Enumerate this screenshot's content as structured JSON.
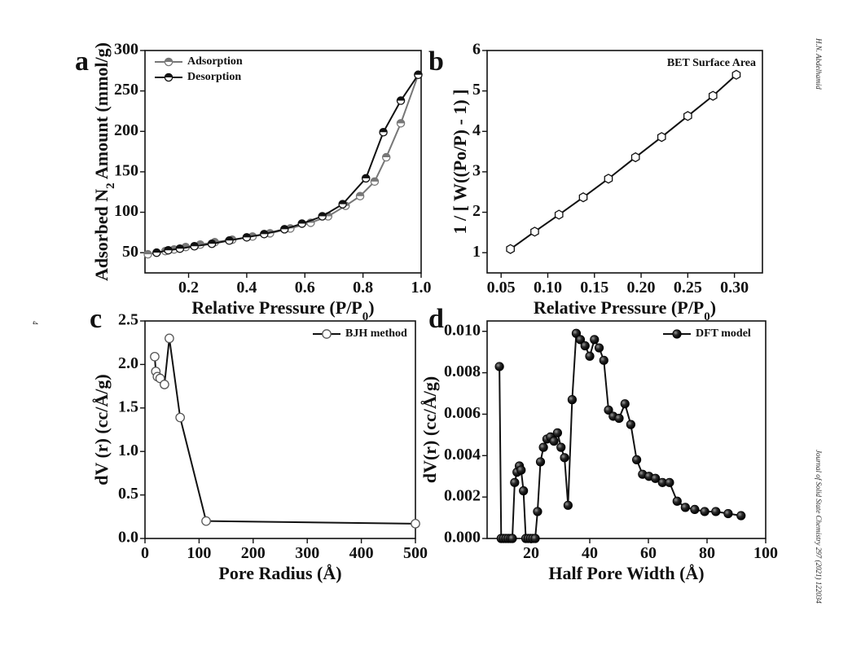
{
  "side_text": {
    "author": "H.N. Abdelhamid",
    "journal": "Journal of Solid State Chemistry 297 (2021) 122034",
    "page": "4"
  },
  "chart_data": [
    {
      "panel": "a",
      "type": "line",
      "xlabel": "Relative Pressure (P/P0)",
      "ylabel": "Adsorbed N2 Amount (mmol/g)",
      "xlim": [
        0.05,
        1.0
      ],
      "ylim": [
        25,
        300
      ],
      "xticks": [
        "0.2",
        "0.4",
        "0.6",
        "0.8",
        "1.0"
      ],
      "xtick_values": [
        0.2,
        0.4,
        0.6,
        0.8,
        1.0
      ],
      "yticks": [
        "50",
        "100",
        "150",
        "200",
        "250",
        "300"
      ],
      "ytick_values": [
        50,
        100,
        150,
        200,
        250,
        300
      ],
      "legend_position": "top-left",
      "series": [
        {
          "name": "Adsorption",
          "color": "#777777",
          "marker": "circle-half",
          "x": [
            0.06,
            0.09,
            0.12,
            0.15,
            0.19,
            0.24,
            0.29,
            0.35,
            0.42,
            0.48,
            0.55,
            0.62,
            0.68,
            0.74,
            0.79,
            0.84,
            0.88,
            0.93,
            0.99
          ],
          "y": [
            48,
            50,
            52,
            54,
            57,
            60,
            63,
            66,
            70,
            74,
            80,
            87,
            95,
            108,
            120,
            138,
            168,
            210,
            270
          ]
        },
        {
          "name": "Desorption",
          "color": "#111111",
          "marker": "circle-half",
          "x": [
            0.99,
            0.93,
            0.87,
            0.81,
            0.73,
            0.66,
            0.59,
            0.53,
            0.46,
            0.4,
            0.34,
            0.28,
            0.22,
            0.17,
            0.13,
            0.09
          ],
          "y": [
            270,
            238,
            199,
            142,
            110,
            95,
            86,
            79,
            73,
            69,
            65,
            61,
            58,
            55,
            53,
            50
          ]
        }
      ]
    },
    {
      "panel": "b",
      "type": "scatter",
      "annotation": "BET Surface Area",
      "xlabel": "Relative Pressure (P/P0)",
      "ylabel": "1 / [ W((Po/P) - 1) ]",
      "xlim": [
        0.035,
        0.33
      ],
      "ylim": [
        0.5,
        6
      ],
      "xticks": [
        "0.05",
        "0.10",
        "0.15",
        "0.20",
        "0.25",
        "0.30"
      ],
      "xtick_values": [
        0.05,
        0.1,
        0.15,
        0.2,
        0.25,
        0.3
      ],
      "yticks": [
        "1",
        "2",
        "3",
        "4",
        "5",
        "6"
      ],
      "ytick_values": [
        1,
        2,
        3,
        4,
        5,
        6
      ],
      "series": [
        {
          "name": "",
          "color": "#111111",
          "marker": "hexagon",
          "x": [
            0.06,
            0.086,
            0.112,
            0.138,
            0.165,
            0.194,
            0.222,
            0.25,
            0.277,
            0.302
          ],
          "y": [
            1.09,
            1.52,
            1.94,
            2.37,
            2.83,
            3.36,
            3.86,
            4.38,
            4.88,
            5.4
          ]
        }
      ]
    },
    {
      "panel": "c",
      "type": "line",
      "xlabel": "Pore Radius (Å)",
      "ylabel": "dV (r) (cc/Å/g)",
      "xlim": [
        0,
        500
      ],
      "ylim": [
        0,
        2.5
      ],
      "xticks": [
        "0",
        "100",
        "200",
        "300",
        "400",
        "500"
      ],
      "xtick_values": [
        0,
        100,
        200,
        300,
        400,
        500
      ],
      "yticks": [
        "0.0",
        "0.5",
        "1.0",
        "1.5",
        "2.0",
        "2.5"
      ],
      "ytick_values": [
        0,
        0.5,
        1.0,
        1.5,
        2.0,
        2.5
      ],
      "legend_position": "top-right",
      "series": [
        {
          "name": "BJH method",
          "color": "#111111",
          "marker": "circle-open",
          "x": [
            18,
            20,
            23,
            28,
            36,
            45,
            65,
            113,
            500
          ],
          "y": [
            2.09,
            1.92,
            1.86,
            1.84,
            1.77,
            2.3,
            1.39,
            0.2,
            0.17
          ]
        }
      ]
    },
    {
      "panel": "d",
      "type": "line",
      "xlabel": "Half Pore Width (Å)",
      "ylabel": "dV(r) (cc/Å/g)",
      "xlim": [
        5,
        100
      ],
      "ylim": [
        0,
        0.0105
      ],
      "xticks": [
        "20",
        "40",
        "60",
        "80",
        "100"
      ],
      "xtick_values": [
        20,
        40,
        60,
        80,
        100
      ],
      "yticks": [
        "0.000",
        "0.002",
        "0.004",
        "0.006",
        "0.008",
        "0.010"
      ],
      "ytick_values": [
        0,
        0.002,
        0.004,
        0.006,
        0.008,
        0.01
      ],
      "legend_position": "top-right",
      "series": [
        {
          "name": "DFT model",
          "color": "#111111",
          "marker": "sphere",
          "x": [
            9.2,
            9.8,
            10.6,
            11.4,
            12.2,
            13.0,
            13.6,
            14.4,
            15.2,
            16.0,
            16.6,
            17.4,
            18.2,
            19.0,
            19.8,
            20.6,
            21.4,
            22.2,
            23.2,
            24.2,
            25.4,
            26.6,
            27.8,
            29.0,
            30.2,
            31.4,
            32.6,
            34.0,
            35.4,
            36.8,
            38.4,
            40.0,
            41.6,
            43.2,
            44.8,
            46.4,
            48.0,
            50.0,
            52.0,
            54.0,
            56.0,
            58.0,
            60.2,
            62.4,
            64.8,
            67.2,
            69.8,
            72.6,
            75.8,
            79.2,
            83.0,
            87.2,
            91.6
          ],
          "y": [
            0.0083,
            0,
            0,
            0,
            0,
            0,
            0,
            0.0027,
            0.0032,
            0.0035,
            0.0033,
            0.0023,
            0,
            0,
            0,
            0,
            0,
            0.0013,
            0.0037,
            0.0044,
            0.0048,
            0.0049,
            0.0047,
            0.0051,
            0.0044,
            0.0039,
            0.0016,
            0.0067,
            0.0099,
            0.0096,
            0.0093,
            0.0088,
            0.0096,
            0.0092,
            0.0086,
            0.0062,
            0.0059,
            0.0058,
            0.0065,
            0.0055,
            0.0038,
            0.0031,
            0.003,
            0.0029,
            0.0027,
            0.0027,
            0.0018,
            0.0015,
            0.0014,
            0.0013,
            0.0013,
            0.0012,
            0.0011
          ]
        }
      ]
    }
  ]
}
